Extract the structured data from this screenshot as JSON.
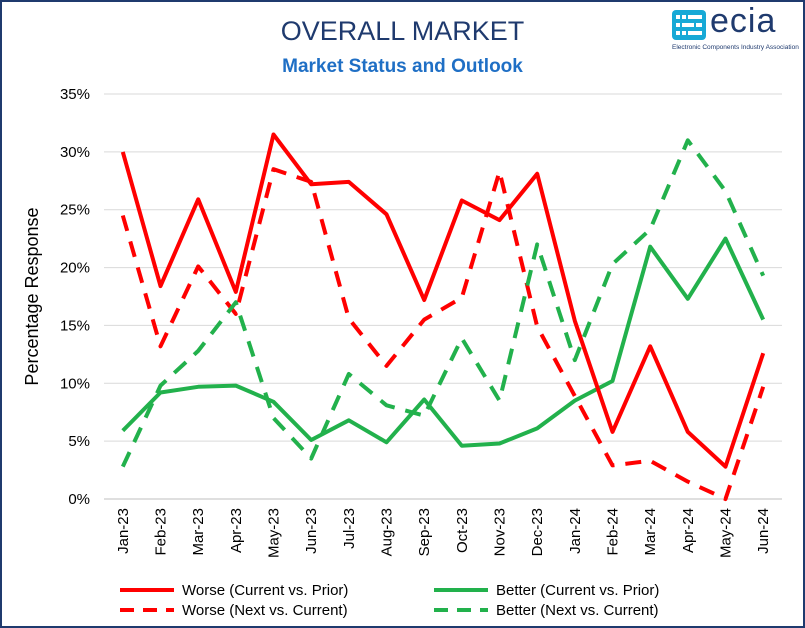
{
  "header": {
    "title": "OVERALL MARKET",
    "subtitle": "Market Status and Outlook"
  },
  "logo": {
    "name": "ecia",
    "tagline": "Electronic Components Industry Association",
    "color": "#17a9d6"
  },
  "colors": {
    "worse": "#ff0000",
    "better": "#22b14c",
    "border": "#1f3a6e"
  },
  "chart_data": {
    "type": "line",
    "title": "OVERALL MARKET",
    "subtitle": "Market Status and Outlook",
    "xlabel": "",
    "ylabel": "Percentage Response",
    "categories": [
      "Jan-23",
      "Feb-23",
      "Mar-23",
      "Apr-23",
      "May-23",
      "Jun-23",
      "Jul-23",
      "Aug-23",
      "Sep-23",
      "Oct-23",
      "Nov-23",
      "Dec-23",
      "Jan-24",
      "Feb-24",
      "Mar-24",
      "Apr-24",
      "May-24",
      "Jun-24"
    ],
    "ylim": [
      0,
      35
    ],
    "yticks": [
      "0%",
      "5%",
      "10%",
      "15%",
      "20%",
      "25%",
      "30%",
      "35%"
    ],
    "grid": true,
    "legend_position": "bottom",
    "series": [
      {
        "name": "Worse (Current vs. Prior)",
        "color": "#ff0000",
        "style": "solid",
        "values": [
          30.0,
          18.4,
          25.9,
          17.9,
          31.5,
          27.2,
          27.4,
          24.6,
          17.2,
          25.8,
          24.1,
          28.1,
          15.4,
          5.8,
          13.2,
          5.8,
          2.8,
          12.6
        ]
      },
      {
        "name": "Better (Current vs. Prior)",
        "color": "#22b14c",
        "style": "solid",
        "values": [
          5.9,
          9.2,
          9.7,
          9.8,
          8.4,
          5.1,
          6.8,
          4.9,
          8.6,
          4.6,
          4.8,
          6.1,
          8.5,
          10.2,
          21.8,
          17.3,
          22.5,
          15.5
        ]
      },
      {
        "name": "Worse (Next vs. Current)",
        "color": "#ff0000",
        "style": "dashed",
        "values": [
          24.5,
          13.2,
          20.1,
          16.0,
          28.5,
          27.4,
          15.6,
          11.5,
          15.5,
          17.4,
          28.3,
          14.9,
          8.9,
          2.9,
          3.3,
          1.5,
          0.0,
          9.7
        ]
      },
      {
        "name": "Better (Next vs. Current)",
        "color": "#22b14c",
        "style": "dashed",
        "values": [
          2.8,
          9.8,
          12.8,
          17.0,
          7.0,
          3.5,
          10.8,
          8.1,
          7.2,
          13.9,
          8.5,
          22.0,
          12.0,
          20.3,
          23.3,
          31.0,
          26.6,
          19.3
        ]
      }
    ]
  }
}
